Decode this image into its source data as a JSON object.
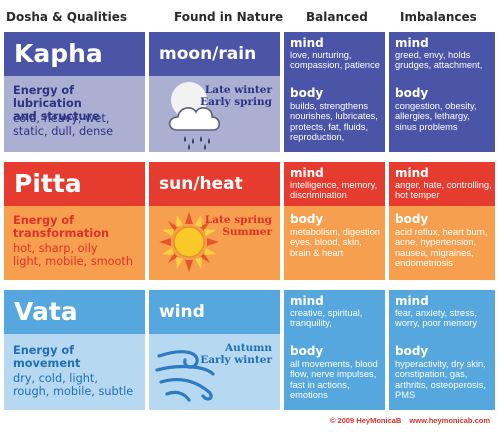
{
  "headers": [
    "Dosha & Qualities",
    "Found in Nature",
    "Balanced",
    "Imbalances"
  ],
  "rows": [
    {
      "dosha": "Kapha",
      "energy_lines": [
        "Energy of lubrication",
        "and structure"
      ],
      "qualities_lines": [
        "cold, heavy, wet,",
        "static, dull, dense"
      ],
      "nature": "moon/rain",
      "season_lines": [
        "Late winter",
        "Early spring"
      ],
      "icon": "cloud-moon-rain-icon",
      "balanced_mind_label": "mind",
      "balanced_mind_lines": [
        "love, nurturing,",
        "compassion, patience"
      ],
      "balanced_body_label": "body",
      "balanced_body_lines": [
        "builds, strengthens",
        "nourishes, lubricates,",
        "protects, fat, fluids,",
        "reproduction,"
      ],
      "imbalance_mind_label": "mind",
      "imbalance_mind_lines": [
        "greed, envy, holds",
        "grudges, attachment,"
      ],
      "imbalance_body_label": "body",
      "imbalance_body_lines": [
        "congestion, obesity,",
        "allergies, lethargy,",
        "sinus problems"
      ]
    },
    {
      "dosha": "Pitta",
      "energy_lines": [
        "Energy of",
        "transformation"
      ],
      "qualities_lines": [
        "hot, sharp, oily",
        "light, mobile, smooth"
      ],
      "nature": "sun/heat",
      "season_lines": [
        "Late spring",
        "Summer"
      ],
      "icon": "sun-icon",
      "balanced_mind_label": "mind",
      "balanced_mind_lines": [
        "intelligence, memory,",
        "discrimination"
      ],
      "balanced_body_label": "body",
      "balanced_body_lines": [
        "metabolism, digestion",
        "eyes, blood, skin,",
        "brain & heart"
      ],
      "imbalance_mind_label": "mind",
      "imbalance_mind_lines": [
        "anger, hate, controlling,",
        "hot temper"
      ],
      "imbalance_body_label": "body",
      "imbalance_body_lines": [
        "acid reflux, heart burn,",
        "acne, hypertension,",
        "nausea, migraines,",
        "endometriosis"
      ]
    },
    {
      "dosha": "Vata",
      "energy_lines": [
        "Energy of",
        "movement"
      ],
      "qualities_lines": [
        "dry, cold, light,",
        "rough, mobile, subtle"
      ],
      "nature": "wind",
      "season_lines": [
        "Autumn",
        "Early winter"
      ],
      "icon": "wind-swirl-icon",
      "balanced_mind_label": "mind",
      "balanced_mind_lines": [
        "creative, spiritual,",
        "tranquility,"
      ],
      "balanced_body_label": "body",
      "balanced_body_lines": [
        "all movements, blood",
        "flow, nerve impulses,",
        "fast in actions,",
        "emotions"
      ],
      "imbalance_mind_label": "mind",
      "imbalance_mind_lines": [
        "fear, anxiety, stress,",
        "worry, poor memory"
      ],
      "imbalance_body_label": "body",
      "imbalance_body_lines": [
        "hyperactivity, dry skin,",
        "constipation, gas,",
        "arthritis, osteoperosis,",
        "PMS"
      ]
    }
  ],
  "footer": {
    "copyright": "© 2009 HeyMonicaB",
    "website": "www.heymonicab.com"
  },
  "colors": {
    "kapha_top": "#4b55a8",
    "kapha_bottom": "#abb0d3",
    "kapha_text": "#2b3384",
    "pitta_top": "#e63c30",
    "pitta_bottom": "#f6a04f",
    "pitta_text": "#e1302a",
    "vata_top": "#56a7dd",
    "vata_bottom": "#b6d8f0",
    "vata_text": "#1f6fb4"
  }
}
